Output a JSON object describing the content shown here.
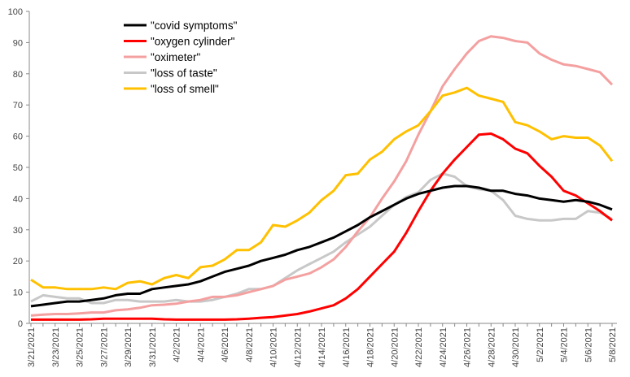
{
  "chart_data": {
    "type": "line",
    "title": "",
    "xlabel": "",
    "ylabel": "",
    "ylim": [
      0,
      100
    ],
    "yticks": [
      0,
      10,
      20,
      30,
      40,
      50,
      60,
      70,
      80,
      90,
      100
    ],
    "grid": false,
    "legend_position": "top-left",
    "x": [
      "3/21/2021",
      "3/22/2021",
      "3/23/2021",
      "3/24/2021",
      "3/25/2021",
      "3/26/2021",
      "3/27/2021",
      "3/28/2021",
      "3/29/2021",
      "3/30/2021",
      "3/31/2021",
      "4/1/2021",
      "4/2/2021",
      "4/3/2021",
      "4/4/2021",
      "4/5/2021",
      "4/6/2021",
      "4/7/2021",
      "4/8/2021",
      "4/9/2021",
      "4/10/2021",
      "4/11/2021",
      "4/12/2021",
      "4/13/2021",
      "4/14/2021",
      "4/15/2021",
      "4/16/2021",
      "4/17/2021",
      "4/18/2021",
      "4/19/2021",
      "4/20/2021",
      "4/21/2021",
      "4/22/2021",
      "4/23/2021",
      "4/24/2021",
      "4/25/2021",
      "4/26/2021",
      "4/27/2021",
      "4/28/2021",
      "4/29/2021",
      "4/30/2021",
      "5/1/2021",
      "5/2/2021",
      "5/3/2021",
      "5/4/2021",
      "5/5/2021",
      "5/6/2021",
      "5/7/2021",
      "5/8/2021"
    ],
    "xtick_labels": [
      "3/21/2021",
      "3/23/2021",
      "3/25/2021",
      "3/27/2021",
      "3/29/2021",
      "3/31/2021",
      "4/2/2021",
      "4/4/2021",
      "4/6/2021",
      "4/8/2021",
      "4/10/2021",
      "4/12/2021",
      "4/14/2021",
      "4/16/2021",
      "4/18/2021",
      "4/20/2021",
      "4/22/2021",
      "4/24/2021",
      "4/26/2021",
      "4/28/2021",
      "4/30/2021",
      "5/2/2021",
      "5/4/2021",
      "5/6/2021",
      "5/8/2021"
    ],
    "series": [
      {
        "name": "\"covid symptoms\"",
        "color": "#000000",
        "values": [
          5.5,
          6,
          6.5,
          7,
          7,
          7.5,
          8,
          9,
          9.5,
          9.5,
          11,
          11.5,
          12,
          12.5,
          13.5,
          15,
          16.5,
          17.5,
          18.5,
          20,
          21,
          22,
          23.5,
          24.5,
          26,
          27.5,
          29.5,
          31.5,
          34,
          36,
          38,
          40,
          41.5,
          42.5,
          43.5,
          44,
          44,
          43.5,
          42.5,
          42.5,
          41.5,
          41,
          40,
          39.5,
          39,
          39.5,
          39,
          38,
          36.5
        ]
      },
      {
        "name": "\"oxygen cylinder\"",
        "color": "#ff0000",
        "values": [
          1.2,
          1.2,
          1.2,
          1.2,
          1.2,
          1.3,
          1.5,
          1.5,
          1.5,
          1.5,
          1.5,
          1.3,
          1.2,
          1.2,
          1.2,
          1.2,
          1.2,
          1.3,
          1.5,
          1.8,
          2,
          2.5,
          3,
          3.8,
          4.8,
          5.8,
          8,
          11,
          15,
          19,
          23,
          29,
          36,
          42.5,
          48,
          52.5,
          56.5,
          60.5,
          60.8,
          59,
          56,
          54.5,
          50.5,
          47,
          42.5,
          41,
          38.5,
          36,
          33
        ]
      },
      {
        "name": "\"oximeter\"",
        "color": "#f4a0a0",
        "values": [
          2.5,
          2.8,
          3,
          3,
          3.2,
          3.5,
          3.5,
          4.2,
          4.5,
          5,
          5.8,
          6,
          6.3,
          7,
          7.5,
          8.5,
          8.5,
          9,
          10,
          11,
          12,
          14,
          15,
          16,
          18,
          20.5,
          24.5,
          29.5,
          34,
          40,
          45.5,
          52,
          60.5,
          68,
          76,
          81.5,
          86.5,
          90.5,
          92,
          91.5,
          90.5,
          90,
          86.5,
          84.5,
          83,
          82.5,
          81.5,
          80.5,
          76.5
        ]
      },
      {
        "name": "\"loss of taste\"",
        "color": "#c8c8c8",
        "values": [
          7,
          9,
          8.5,
          8,
          8,
          6.5,
          6.5,
          7.5,
          7.5,
          7,
          7,
          7,
          7.5,
          7,
          7,
          7.5,
          8.5,
          9.5,
          11,
          11,
          12,
          14.5,
          17,
          19,
          21,
          23,
          26,
          28.5,
          31,
          34.5,
          38,
          40.5,
          42,
          46,
          48,
          47,
          44,
          43,
          42.5,
          39.5,
          34.5,
          33.5,
          33,
          33,
          33.5,
          33.5,
          36,
          35.5,
          33.5
        ]
      },
      {
        "name": "\"loss of smell\"",
        "color": "#ffc000",
        "values": [
          14,
          11.5,
          11.5,
          11,
          11,
          11,
          11.5,
          11,
          13,
          13.5,
          12.5,
          14.5,
          15.5,
          14.5,
          18,
          18.5,
          20.5,
          23.5,
          23.5,
          26,
          31.5,
          31,
          33,
          35.5,
          39.5,
          42.5,
          47.5,
          48,
          52.5,
          55,
          59,
          61.5,
          63.5,
          68,
          73,
          74,
          75.5,
          73,
          72,
          71,
          64.5,
          63.5,
          61.5,
          59,
          60,
          59.5,
          59.5,
          57,
          52
        ]
      }
    ]
  }
}
